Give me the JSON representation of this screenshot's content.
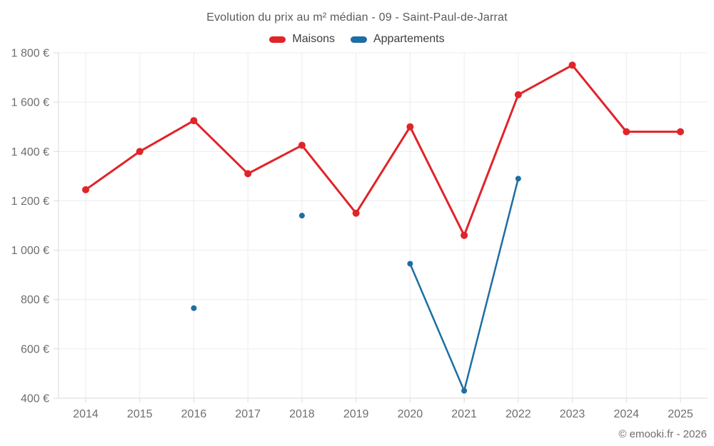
{
  "title": "Evolution du prix au m² médian - 09 - Saint-Paul-de-Jarrat",
  "footer": "© emooki.fr - 2026",
  "legend": [
    {
      "label": "Maisons",
      "color": "#e02429"
    },
    {
      "label": "Appartements",
      "color": "#1c6ea4"
    }
  ],
  "colors": {
    "maisons": "#e02429",
    "appartements": "#1c6ea4",
    "gridline": "#ececec",
    "axis_line": "#d9d9d9",
    "tick_label": "#6e6e6e"
  },
  "chart_data": {
    "type": "line",
    "categories": [
      2014,
      2015,
      2016,
      2017,
      2018,
      2019,
      2020,
      2021,
      2022,
      2023,
      2024,
      2025
    ],
    "series": [
      {
        "name": "Maisons",
        "color": "#e02429",
        "values": [
          1245,
          1400,
          1525,
          1310,
          1425,
          1150,
          1500,
          1060,
          1630,
          1750,
          1480,
          1480
        ]
      },
      {
        "name": "Appartements",
        "color": "#1c6ea4",
        "values": [
          null,
          null,
          765,
          null,
          1140,
          null,
          945,
          430,
          1290,
          null,
          null,
          null
        ]
      }
    ],
    "title": "Evolution du prix au m² médian - 09 - Saint-Paul-de-Jarrat",
    "xlabel": "",
    "ylabel": "",
    "y_unit": "€",
    "ylim": [
      400,
      1800
    ],
    "ytick_step": 200,
    "grid": true,
    "legend_position": "top"
  }
}
